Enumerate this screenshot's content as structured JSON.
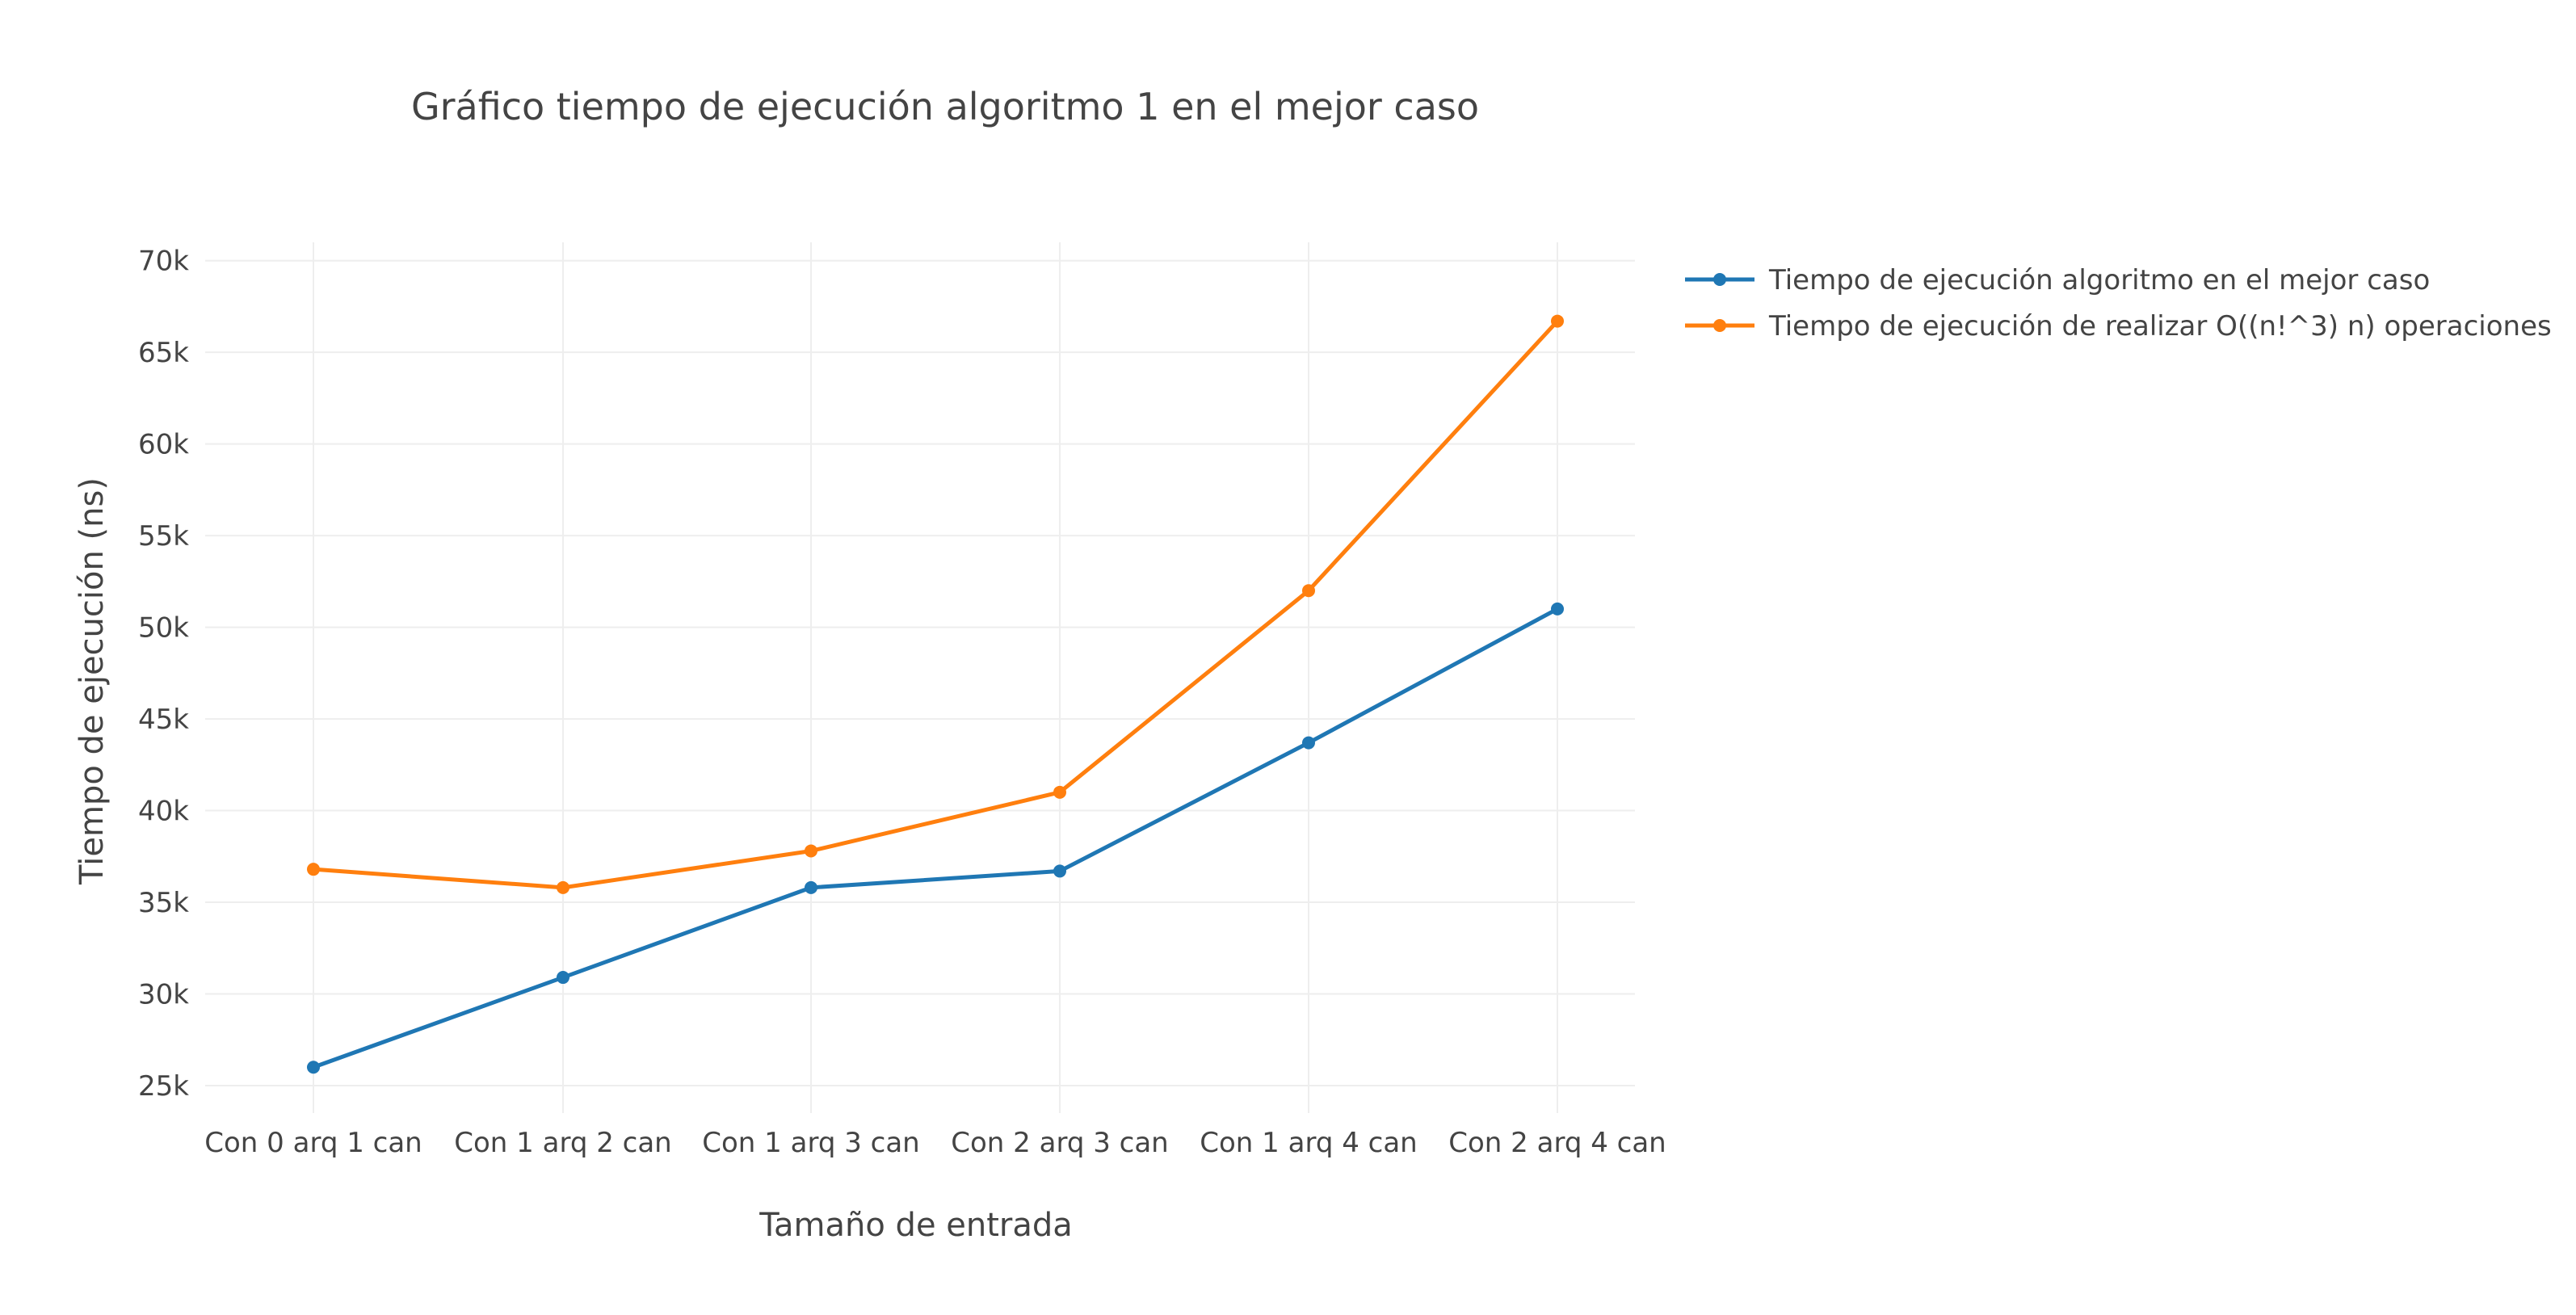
{
  "chart_data": {
    "type": "line",
    "title": "Gráfico tiempo de ejecución algoritmo 1 en el mejor caso",
    "xlabel": "Tamaño de entrada",
    "ylabel": "Tiempo de ejecución (ns)",
    "categories": [
      "Con 0 arq 1 can",
      "Con 1 arq 2 can",
      "Con 1 arq 3 can",
      "Con 2 arq 3 can",
      "Con 1 arq 4 can",
      "Con 2 arq 4 can"
    ],
    "ylim": [
      23500,
      71000
    ],
    "yticks": [
      25000,
      30000,
      35000,
      40000,
      45000,
      50000,
      55000,
      60000,
      65000,
      70000
    ],
    "ytick_labels": [
      "25k",
      "30k",
      "35k",
      "40k",
      "45k",
      "50k",
      "55k",
      "60k",
      "65k",
      "70k"
    ],
    "grid": true,
    "legend_position": "top-right, outside plot",
    "series": [
      {
        "name": "Tiempo de ejecución algoritmo en el mejor caso",
        "color": "#1f77b4",
        "values": [
          26000,
          30900,
          35800,
          36700,
          43700,
          51000
        ]
      },
      {
        "name": "Tiempo de ejecución de realizar O((n!^3) n) operaciones",
        "color": "#ff7f0e",
        "values": [
          36800,
          35800,
          37800,
          41000,
          52000,
          66700
        ]
      }
    ]
  }
}
